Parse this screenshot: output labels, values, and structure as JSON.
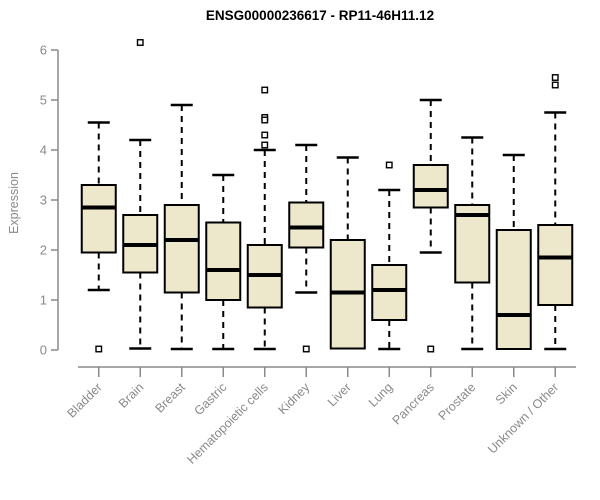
{
  "chart_data": {
    "type": "box",
    "title": "ENSG00000236617 - RP11-46H11.12",
    "ylabel": "Expression",
    "xlabel": "",
    "ylim": [
      0,
      6
    ],
    "yticks": [
      0,
      1,
      2,
      3,
      4,
      5,
      6
    ],
    "grid": false,
    "legend": false,
    "categories": [
      "Bladder",
      "Brain",
      "Breast",
      "Gastric",
      "Hematopoietic cells",
      "Kidney",
      "Liver",
      "Lung",
      "Pancreas",
      "Prostate",
      "Skin",
      "Unknown / Other"
    ],
    "series": [
      {
        "name": "Bladder",
        "whisker_low": 1.2,
        "q1": 1.95,
        "median": 2.85,
        "q3": 3.3,
        "whisker_high": 4.55,
        "outliers": [
          0.02
        ]
      },
      {
        "name": "Brain",
        "whisker_low": 0.03,
        "q1": 1.55,
        "median": 2.1,
        "q3": 2.7,
        "whisker_high": 4.2,
        "outliers": [
          6.15
        ]
      },
      {
        "name": "Breast",
        "whisker_low": 0.02,
        "q1": 1.15,
        "median": 2.2,
        "q3": 2.9,
        "whisker_high": 4.9,
        "outliers": []
      },
      {
        "name": "Gastric",
        "whisker_low": 0.02,
        "q1": 1.0,
        "median": 1.6,
        "q3": 2.55,
        "whisker_high": 3.5,
        "outliers": []
      },
      {
        "name": "Hematopoietic cells",
        "whisker_low": 0.02,
        "q1": 0.85,
        "median": 1.5,
        "q3": 2.1,
        "whisker_high": 4.0,
        "outliers": [
          5.2,
          4.65,
          4.6,
          4.3,
          4.1
        ]
      },
      {
        "name": "Kidney",
        "whisker_low": 1.15,
        "q1": 2.05,
        "median": 2.45,
        "q3": 2.95,
        "whisker_high": 4.1,
        "outliers": [
          0.02
        ]
      },
      {
        "name": "Liver",
        "whisker_low": 0.03,
        "q1": 0.03,
        "median": 1.15,
        "q3": 2.2,
        "whisker_high": 3.85,
        "outliers": []
      },
      {
        "name": "Lung",
        "whisker_low": 0.02,
        "q1": 0.6,
        "median": 1.2,
        "q3": 1.7,
        "whisker_high": 3.2,
        "outliers": [
          3.7
        ]
      },
      {
        "name": "Pancreas",
        "whisker_low": 1.95,
        "q1": 2.85,
        "median": 3.2,
        "q3": 3.7,
        "whisker_high": 5.0,
        "outliers": [
          0.02
        ]
      },
      {
        "name": "Prostate",
        "whisker_low": 0.02,
        "q1": 1.35,
        "median": 2.7,
        "q3": 2.9,
        "whisker_high": 4.25,
        "outliers": []
      },
      {
        "name": "Skin",
        "whisker_low": 0.02,
        "q1": 0.02,
        "median": 0.7,
        "q3": 2.4,
        "whisker_high": 3.9,
        "outliers": []
      },
      {
        "name": "Unknown / Other",
        "whisker_low": 0.02,
        "q1": 0.9,
        "median": 1.85,
        "q3": 2.5,
        "whisker_high": 4.75,
        "outliers": [
          5.45,
          5.3
        ]
      }
    ],
    "colors": {
      "box_fill": "#EDE7CC",
      "box_border": "#000000",
      "median": "#000000",
      "whisker": "#000000",
      "outlier_border": "#000000",
      "axis": "#8a8a8a",
      "tick_label": "#8a8a8a",
      "title": "#000000",
      "background": "#ffffff"
    }
  }
}
